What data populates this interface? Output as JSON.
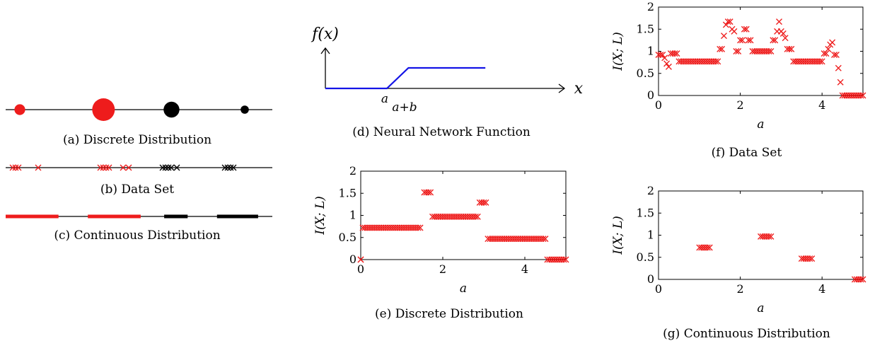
{
  "colors": {
    "red": "#ee1c1c",
    "black": "#000000",
    "blue": "#1414e6"
  },
  "panel_a": {
    "caption": "(a) Discrete Distribution",
    "points": [
      {
        "x": 0.1,
        "weight": 0.3,
        "color": "red"
      },
      {
        "x": 1.7,
        "weight": 1.0,
        "color": "red"
      },
      {
        "x": 3.0,
        "weight": 0.6,
        "color": "black"
      },
      {
        "x": 4.4,
        "weight": 0.15,
        "color": "black"
      }
    ]
  },
  "panel_b": {
    "caption": "(b) Data Set",
    "points": [
      {
        "x": 0.05,
        "color": "red"
      },
      {
        "x": 0.1,
        "color": "red"
      },
      {
        "x": 0.15,
        "color": "red"
      },
      {
        "x": 0.5,
        "color": "red"
      },
      {
        "x": 1.6,
        "color": "red"
      },
      {
        "x": 1.65,
        "color": "red"
      },
      {
        "x": 1.7,
        "color": "red"
      },
      {
        "x": 1.75,
        "color": "red"
      },
      {
        "x": 2.0,
        "color": "red"
      },
      {
        "x": 2.1,
        "color": "red"
      },
      {
        "x": 2.7,
        "color": "black"
      },
      {
        "x": 2.75,
        "color": "black"
      },
      {
        "x": 2.8,
        "color": "black"
      },
      {
        "x": 2.85,
        "color": "black"
      },
      {
        "x": 2.95,
        "color": "black"
      },
      {
        "x": 3.8,
        "color": "black"
      },
      {
        "x": 3.85,
        "color": "black"
      },
      {
        "x": 3.9,
        "color": "black"
      },
      {
        "x": 3.95,
        "color": "black"
      }
    ]
  },
  "panel_c": {
    "caption": "(c) Continuous Distribution",
    "segments": [
      {
        "from": 0.0,
        "to": 0.9,
        "color": "red"
      },
      {
        "from": 1.4,
        "to": 2.3,
        "color": "red"
      },
      {
        "from": 2.7,
        "to": 3.1,
        "color": "black"
      },
      {
        "from": 3.6,
        "to": 4.3,
        "color": "black"
      }
    ]
  },
  "panel_d": {
    "caption": "(d) Neural Network Function",
    "ylabel": "f(x)",
    "xlabel": "x",
    "tick_a": "a",
    "tick_ab": "a+b",
    "function_points": [
      [
        0,
        0
      ],
      [
        1.0,
        0
      ],
      [
        1.35,
        1
      ],
      [
        2.6,
        1
      ]
    ]
  },
  "chart_data": [
    {
      "id": "e",
      "type": "scatter",
      "caption": "(e) Discrete Distribution",
      "xlabel": "a",
      "ylabel": "I(X; L)",
      "xlim": [
        0,
        5
      ],
      "ylim": [
        0,
        2
      ],
      "xticks": [
        "0",
        "2",
        "4"
      ],
      "yticks": [
        "0",
        "0.5",
        "1",
        "1.5",
        "2"
      ],
      "marker": "x",
      "color": "#ee1c1c",
      "segments": [
        {
          "from": 0.0,
          "to": 0.0,
          "y": 0.0
        },
        {
          "from": 0.05,
          "to": 1.45,
          "y": 0.72
        },
        {
          "from": 1.55,
          "to": 1.7,
          "y": 1.52
        },
        {
          "from": 1.75,
          "to": 2.85,
          "y": 0.97
        },
        {
          "from": 2.9,
          "to": 3.05,
          "y": 1.29
        },
        {
          "from": 3.1,
          "to": 4.5,
          "y": 0.47
        },
        {
          "from": 4.55,
          "to": 5.0,
          "y": 0.0
        }
      ]
    },
    {
      "id": "f",
      "type": "scatter",
      "caption": "(f) Data Set",
      "xlabel": "a",
      "ylabel": "I(X; L)",
      "xlim": [
        0,
        5
      ],
      "ylim": [
        0,
        2
      ],
      "xticks": [
        "0",
        "2",
        "4"
      ],
      "yticks": [
        "0",
        "0.5",
        "1",
        "1.5",
        "2"
      ],
      "marker": "x",
      "color": "#ee1c1c",
      "x": [
        0.0,
        0.05,
        0.1,
        0.15,
        0.2,
        0.25,
        0.3,
        0.35,
        0.4,
        0.45,
        0.5,
        0.55,
        0.6,
        0.65,
        0.7,
        0.75,
        0.8,
        0.85,
        0.9,
        0.95,
        1.0,
        1.05,
        1.1,
        1.15,
        1.2,
        1.25,
        1.3,
        1.35,
        1.4,
        1.45,
        1.5,
        1.55,
        1.6,
        1.65,
        1.7,
        1.75,
        1.8,
        1.85,
        1.9,
        1.95,
        2.0,
        2.05,
        2.1,
        2.15,
        2.2,
        2.25,
        2.3,
        2.35,
        2.4,
        2.45,
        2.5,
        2.55,
        2.6,
        2.65,
        2.7,
        2.75,
        2.8,
        2.85,
        2.9,
        2.95,
        3.0,
        3.05,
        3.1,
        3.15,
        3.2,
        3.25,
        3.3,
        3.35,
        3.4,
        3.45,
        3.5,
        3.55,
        3.6,
        3.65,
        3.7,
        3.75,
        3.8,
        3.85,
        3.9,
        3.95,
        4.0,
        4.05,
        4.1,
        4.15,
        4.2,
        4.25,
        4.3,
        4.35,
        4.4,
        4.45,
        4.5,
        4.55,
        4.6,
        4.65,
        4.7,
        4.75,
        4.8,
        4.85,
        4.9,
        4.95,
        5.0
      ],
      "y": [
        0.92,
        0.92,
        0.92,
        0.85,
        0.72,
        0.65,
        0.95,
        0.95,
        0.95,
        0.95,
        0.77,
        0.77,
        0.77,
        0.77,
        0.77,
        0.77,
        0.77,
        0.77,
        0.77,
        0.77,
        0.77,
        0.77,
        0.77,
        0.77,
        0.77,
        0.77,
        0.77,
        0.77,
        0.77,
        0.77,
        1.05,
        1.05,
        1.35,
        1.6,
        1.67,
        1.67,
        1.5,
        1.45,
        1.0,
        1.0,
        1.25,
        1.25,
        1.5,
        1.5,
        1.25,
        1.25,
        1.0,
        1.0,
        1.0,
        1.0,
        1.0,
        1.0,
        1.0,
        1.0,
        1.0,
        1.0,
        1.25,
        1.25,
        1.45,
        1.67,
        1.45,
        1.4,
        1.3,
        1.05,
        1.05,
        1.05,
        0.77,
        0.77,
        0.77,
        0.77,
        0.77,
        0.77,
        0.77,
        0.77,
        0.77,
        0.77,
        0.77,
        0.77,
        0.77,
        0.77,
        0.77,
        0.95,
        0.95,
        1.05,
        1.15,
        1.2,
        0.92,
        0.92,
        0.62,
        0.3,
        0.0,
        0.0,
        0.0,
        0.0,
        0.0,
        0.0,
        0.0,
        0.0,
        0.0,
        0.0,
        0.0
      ]
    },
    {
      "id": "g",
      "type": "scatter",
      "caption": "(g) Continuous Distribution",
      "xlabel": "a",
      "ylabel": "I(X; L)",
      "xlim": [
        0,
        5
      ],
      "ylim": [
        0,
        2
      ],
      "xticks": [
        "0",
        "2",
        "4"
      ],
      "yticks": [
        "0",
        "0.5",
        "1",
        "1.5",
        "2"
      ],
      "marker": "x",
      "color": "#ee1c1c",
      "segments": [
        {
          "from": 1.0,
          "to": 1.25,
          "y": 0.72
        },
        {
          "from": 2.5,
          "to": 2.75,
          "y": 0.97
        },
        {
          "from": 3.5,
          "to": 3.75,
          "y": 0.47
        },
        {
          "from": 4.8,
          "to": 5.0,
          "y": 0.0
        }
      ]
    }
  ]
}
